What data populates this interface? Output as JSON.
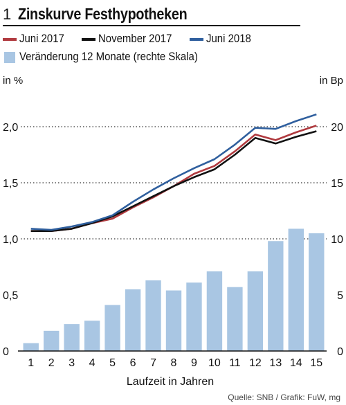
{
  "header": {
    "number": "1",
    "title": "Zinskurve Festhypotheken"
  },
  "legend": [
    {
      "label": "Juni 2017",
      "color": "#b03a3f",
      "kind": "line"
    },
    {
      "label": "November 2017",
      "color": "#111111",
      "kind": "line"
    },
    {
      "label": "Juni 2018",
      "color": "#2f5f9e",
      "kind": "line"
    },
    {
      "label": "Veränderung 12 Monate (rechte Skala)",
      "color": "#a9c6e3",
      "kind": "bar"
    }
  ],
  "source": "Quelle: SNB / Grafik: FuW, mg",
  "chart_data": {
    "type": "bar+line",
    "xlabel": "Laufzeit in Jahren",
    "ylabel_left": "in %",
    "ylabel_right": "in Bp",
    "categories": [
      "1",
      "2",
      "3",
      "4",
      "5",
      "6",
      "7",
      "8",
      "9",
      "10",
      "11",
      "12",
      "13",
      "14",
      "15"
    ],
    "ylim_left": [
      0,
      2.0
    ],
    "ylim_right": [
      0,
      20
    ],
    "yticks_left": [
      "0",
      "0,5",
      "1,0",
      "1,5",
      "2,0"
    ],
    "yticks_right": [
      "0",
      "5",
      "10",
      "15",
      "20"
    ],
    "grid": "dotted horizontal at 1,0 / 1,5 / 2,0",
    "bars": {
      "name": "Veränderung 12 Monate (rechte Skala)",
      "axis": "right",
      "color": "#a9c6e3",
      "values": [
        0.7,
        1.8,
        2.4,
        2.7,
        4.1,
        5.5,
        6.3,
        5.4,
        6.1,
        7.1,
        5.7,
        7.1,
        9.8,
        10.9,
        10.5
      ]
    },
    "series": [
      {
        "name": "Juni 2017",
        "axis": "left",
        "color": "#b03a3f",
        "values": [
          1.07,
          1.07,
          1.09,
          1.14,
          1.18,
          1.28,
          1.37,
          1.47,
          1.58,
          1.65,
          1.78,
          1.93,
          1.88,
          1.95,
          2.01
        ]
      },
      {
        "name": "November 2017",
        "axis": "left",
        "color": "#111111",
        "values": [
          1.07,
          1.07,
          1.09,
          1.14,
          1.2,
          1.29,
          1.38,
          1.47,
          1.55,
          1.62,
          1.75,
          1.9,
          1.85,
          1.91,
          1.96
        ]
      },
      {
        "name": "Juni 2018",
        "axis": "left",
        "color": "#2f5f9e",
        "values": [
          1.09,
          1.08,
          1.11,
          1.15,
          1.21,
          1.33,
          1.44,
          1.54,
          1.63,
          1.71,
          1.84,
          1.99,
          1.98,
          2.05,
          2.11
        ]
      }
    ]
  }
}
